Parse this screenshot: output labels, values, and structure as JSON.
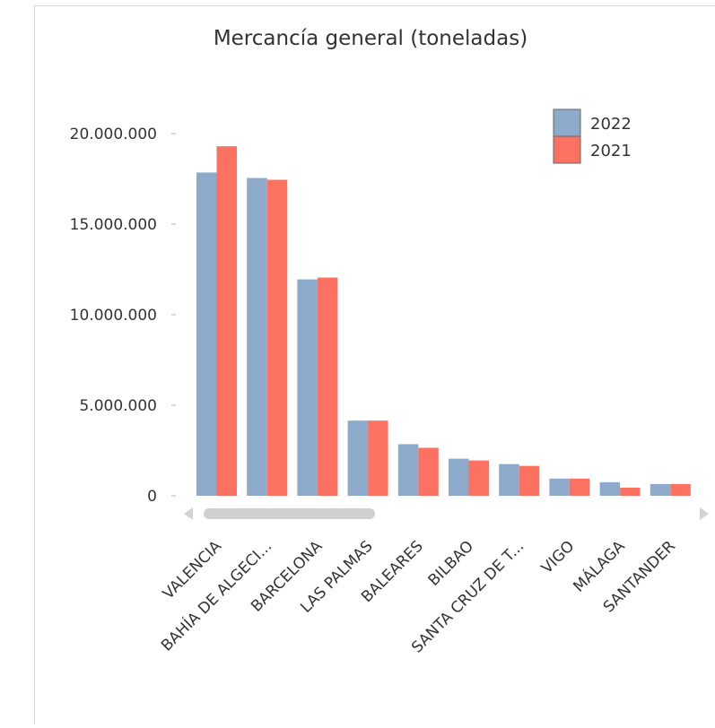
{
  "chart_data": {
    "type": "bar",
    "title": "Mercancía general (toneladas)",
    "xlabel": "",
    "ylabel": "",
    "ylim": [
      0,
      20000000
    ],
    "yticks": [
      {
        "value": 0,
        "label": "0"
      },
      {
        "value": 5000000,
        "label": "5.000.000"
      },
      {
        "value": 10000000,
        "label": "10.000.000"
      },
      {
        "value": 15000000,
        "label": "15.000.000"
      },
      {
        "value": 20000000,
        "label": "20.000.000"
      }
    ],
    "categories": [
      "VALENCIA",
      "BAHÍA DE ALGECI...",
      "BARCELONA",
      "LAS PALMAS",
      "BALEARES",
      "BILBAO",
      "SANTA CRUZ DE T...",
      "VIGO",
      "MÁLAGA",
      "SANTANDER"
    ],
    "series": [
      {
        "name": "2022",
        "color": "#8eaacb",
        "values": [
          17850000,
          17550000,
          11950000,
          4150000,
          2850000,
          2050000,
          1750000,
          950000,
          750000,
          650000
        ]
      },
      {
        "name": "2021",
        "color": "#fc7262",
        "values": [
          19300000,
          17450000,
          12050000,
          4150000,
          2650000,
          1950000,
          1650000,
          950000,
          450000,
          650000
        ]
      }
    ],
    "grid": false,
    "legend_position": "top-right"
  },
  "scrollbar": {
    "left_arrow_icon": "triangle-left-icon",
    "right_arrow_icon": "triangle-right-icon"
  }
}
